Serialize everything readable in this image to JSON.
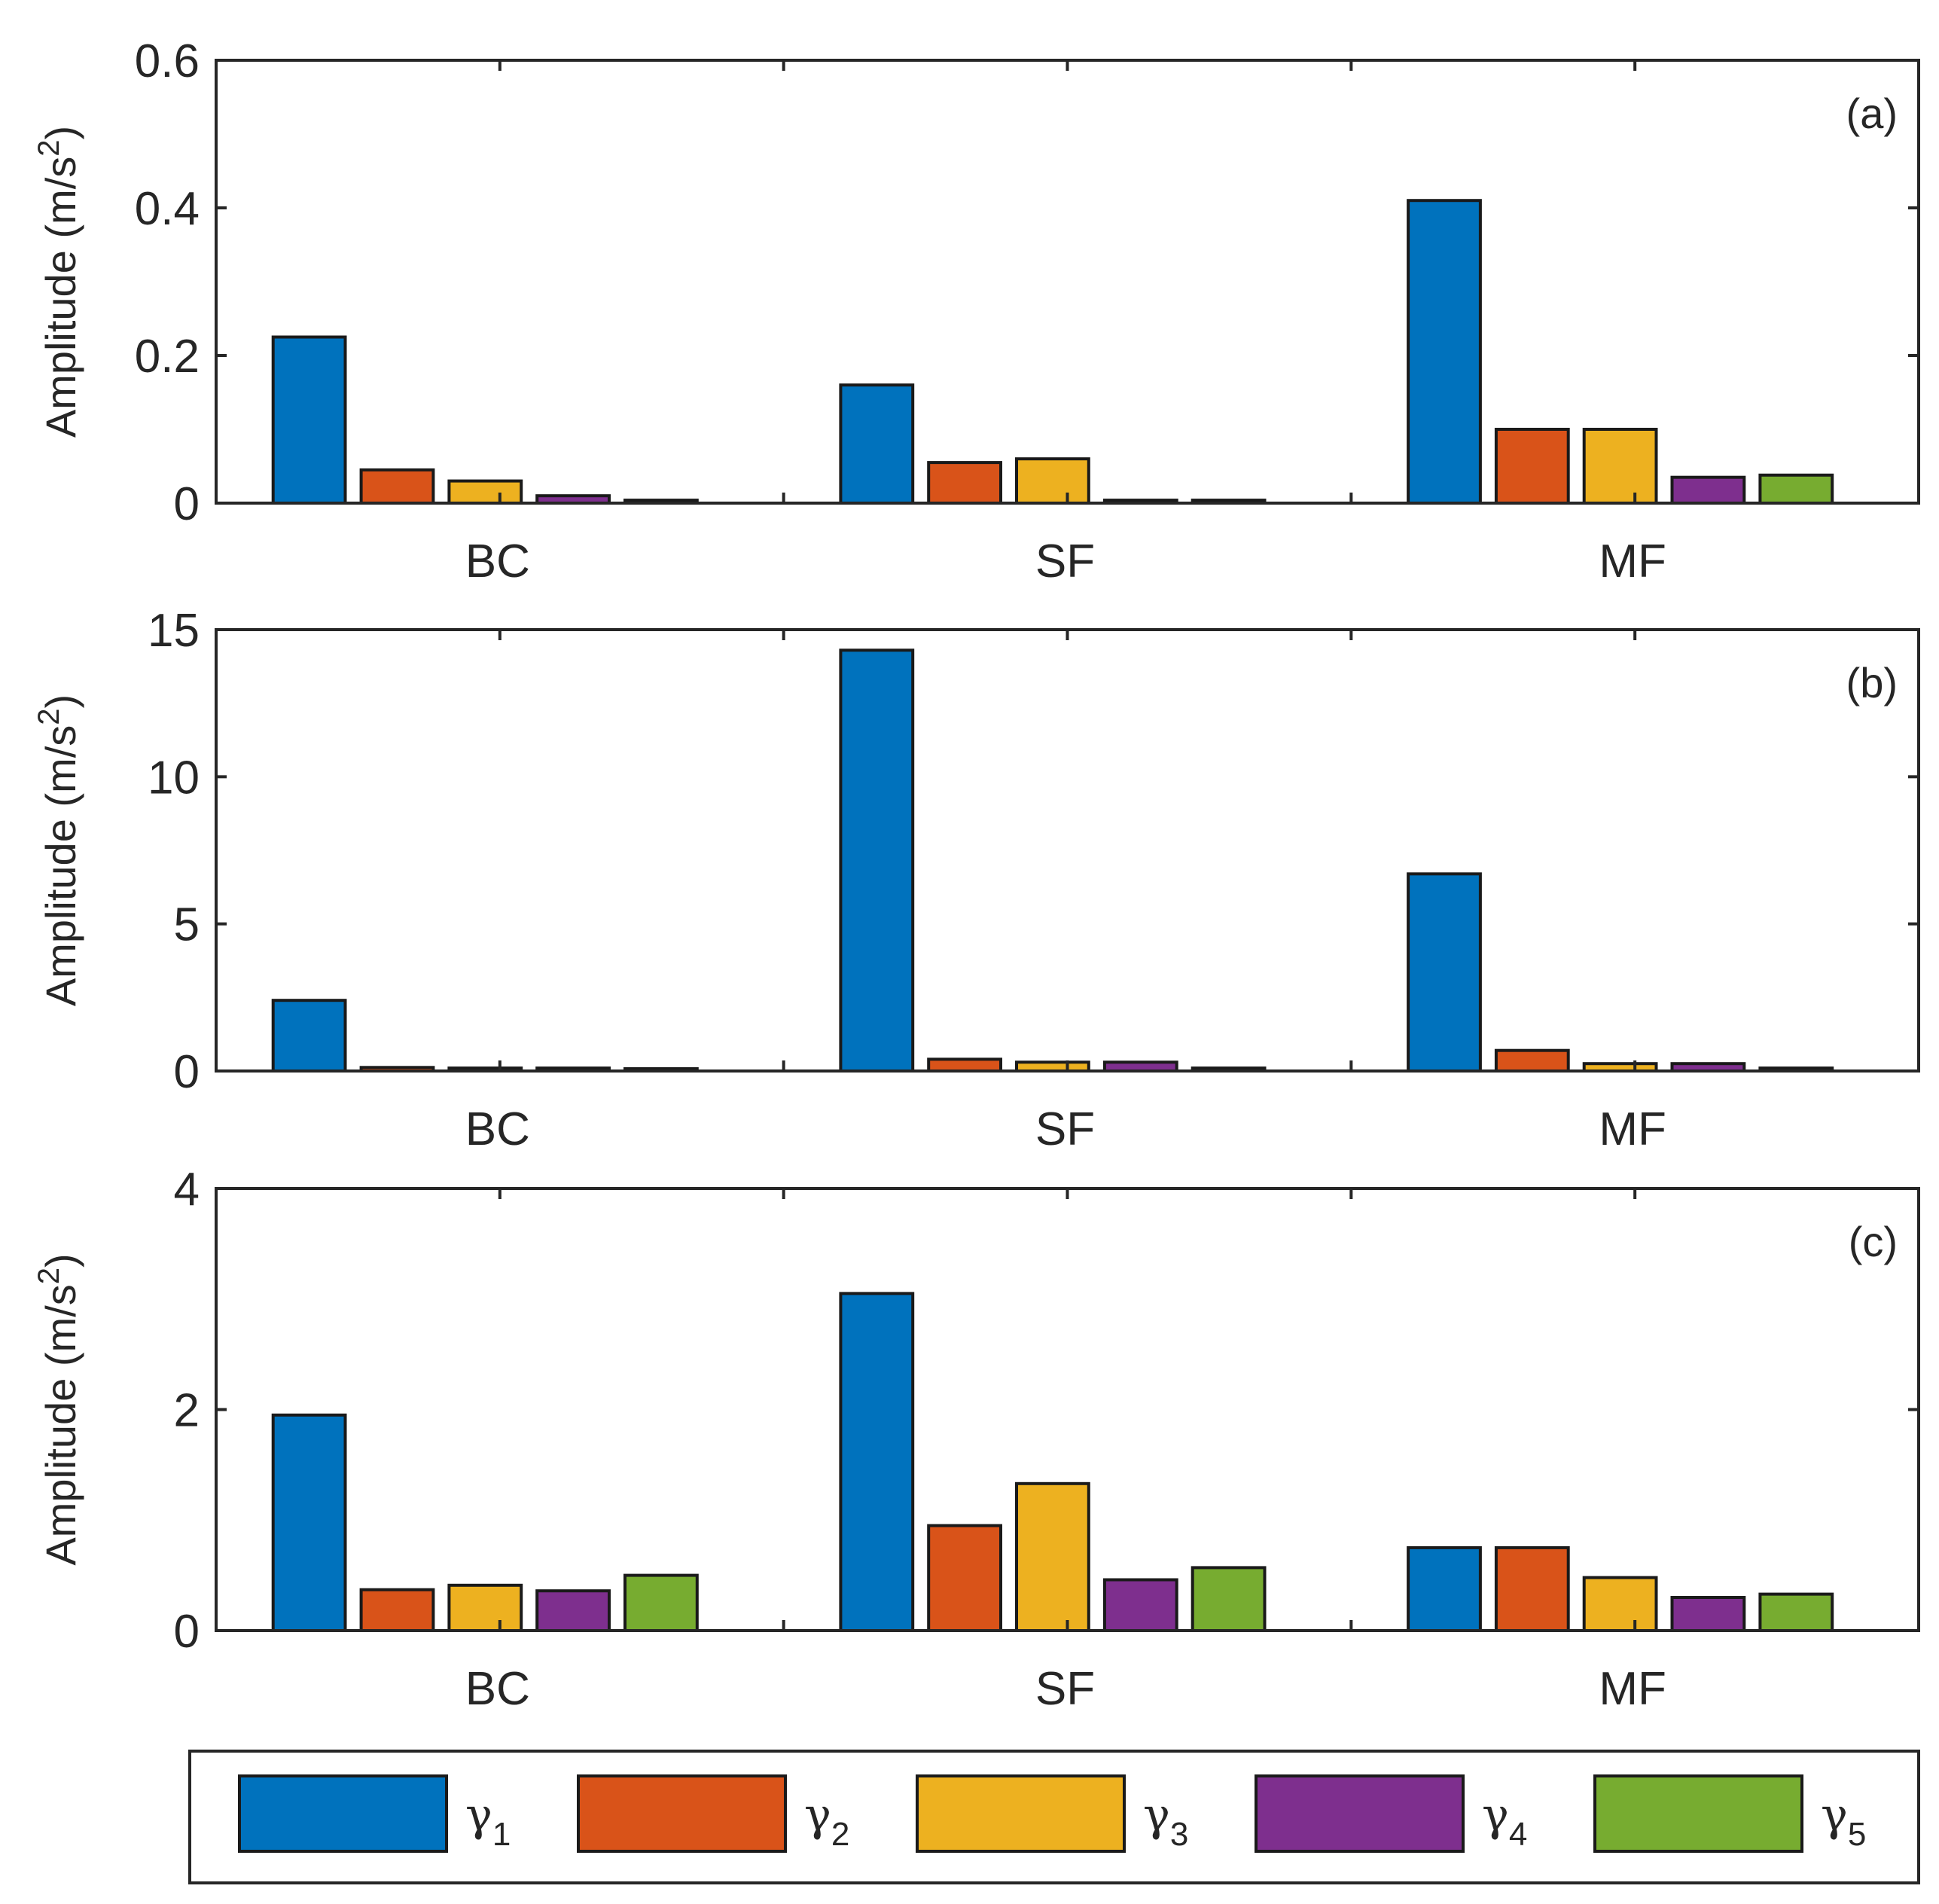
{
  "chart_data": [
    {
      "type": "bar",
      "panel": "(a)",
      "ylabel": "Amplitude (m/s",
      "ylabel_sup": "2",
      "ylabel_close": ")",
      "ylim": [
        0,
        0.6
      ],
      "yticks": [
        0,
        0.2,
        0.4,
        0.6
      ],
      "ytick_labels": [
        "0",
        "0.2",
        "0.4",
        "0.6"
      ],
      "categories": [
        "BC",
        "SF",
        "MF"
      ],
      "series": [
        {
          "name": "γ1",
          "values": [
            0.225,
            0.16,
            0.41
          ]
        },
        {
          "name": "γ2",
          "values": [
            0.045,
            0.055,
            0.1
          ]
        },
        {
          "name": "γ3",
          "values": [
            0.03,
            0.06,
            0.1
          ]
        },
        {
          "name": "γ4",
          "values": [
            0.01,
            0.004,
            0.035
          ]
        },
        {
          "name": "γ5",
          "values": [
            0.004,
            0.004,
            0.038
          ]
        }
      ]
    },
    {
      "type": "bar",
      "panel": "(b)",
      "ylabel": "Amplitude (m/s",
      "ylabel_sup": "2",
      "ylabel_close": ")",
      "ylim": [
        0,
        15
      ],
      "yticks": [
        0,
        5,
        10,
        15
      ],
      "ytick_labels": [
        "0",
        "5",
        "10",
        "15"
      ],
      "categories": [
        "BC",
        "SF",
        "MF"
      ],
      "series": [
        {
          "name": "γ1",
          "values": [
            2.4,
            14.3,
            6.7
          ]
        },
        {
          "name": "γ2",
          "values": [
            0.12,
            0.4,
            0.7
          ]
        },
        {
          "name": "γ3",
          "values": [
            0.1,
            0.3,
            0.25
          ]
        },
        {
          "name": "γ4",
          "values": [
            0.1,
            0.3,
            0.25
          ]
        },
        {
          "name": "γ5",
          "values": [
            0.08,
            0.1,
            0.1
          ]
        }
      ]
    },
    {
      "type": "bar",
      "panel": "(c)",
      "ylabel": "Amplitude (m/s",
      "ylabel_sup": "2",
      "ylabel_close": ")",
      "ylim": [
        0,
        4
      ],
      "yticks": [
        0,
        2,
        4
      ],
      "ytick_labels": [
        "0",
        "2",
        "4"
      ],
      "categories": [
        "BC",
        "SF",
        "MF"
      ],
      "series": [
        {
          "name": "γ1",
          "values": [
            1.95,
            3.05,
            0.75
          ]
        },
        {
          "name": "γ2",
          "values": [
            0.37,
            0.95,
            0.75
          ]
        },
        {
          "name": "γ3",
          "values": [
            0.41,
            1.33,
            0.48
          ]
        },
        {
          "name": "γ4",
          "values": [
            0.36,
            0.46,
            0.3
          ]
        },
        {
          "name": "γ5",
          "values": [
            0.5,
            0.57,
            0.33
          ]
        }
      ]
    }
  ],
  "legend": {
    "items": [
      {
        "symbol": "γ",
        "sub": "1",
        "color": "#0072BD"
      },
      {
        "symbol": "γ",
        "sub": "2",
        "color": "#D95319"
      },
      {
        "symbol": "γ",
        "sub": "3",
        "color": "#EDB120"
      },
      {
        "symbol": "γ",
        "sub": "4",
        "color": "#7E2F8E"
      },
      {
        "symbol": "γ",
        "sub": "5",
        "color": "#77AC30"
      }
    ]
  }
}
